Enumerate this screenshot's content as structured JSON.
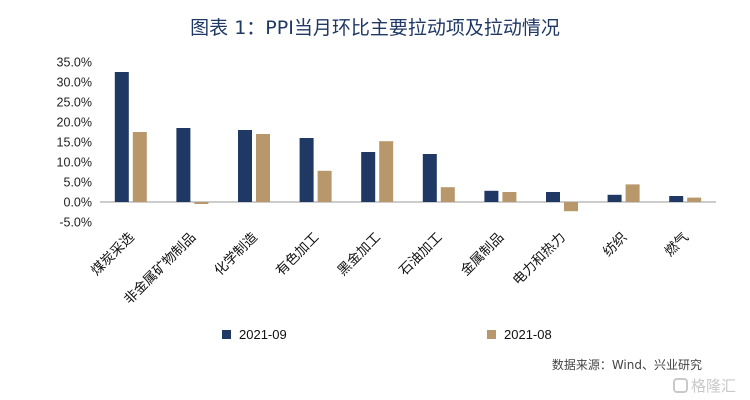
{
  "chart_data": {
    "type": "bar",
    "title": "图表 1：PPI当月环比主要拉动项及拉动情况",
    "categories": [
      "煤炭采选",
      "非金属矿物制品",
      "化学制造",
      "有色加工",
      "黑金加工",
      "石油加工",
      "金属制品",
      "电力和热力",
      "纺织",
      "燃气"
    ],
    "series": [
      {
        "name": "2021-09",
        "color": "#1f3864",
        "values": [
          32.5,
          18.5,
          18.0,
          16.0,
          12.5,
          12.0,
          2.8,
          2.5,
          1.8,
          1.5
        ]
      },
      {
        "name": "2021-08",
        "color": "#b8976a",
        "values": [
          17.5,
          -0.5,
          17.0,
          7.8,
          15.2,
          3.7,
          2.5,
          -2.3,
          4.4,
          1.1
        ]
      }
    ],
    "ylim": [
      -5,
      35
    ],
    "yticks": [
      "-5.0%",
      "0.0%",
      "5.0%",
      "10.0%",
      "15.0%",
      "20.0%",
      "25.0%",
      "30.0%",
      "35.0%"
    ],
    "grid": false,
    "legend": "bottom"
  },
  "source": "数据来源：Wind、兴业研究",
  "watermark": "格隆汇"
}
